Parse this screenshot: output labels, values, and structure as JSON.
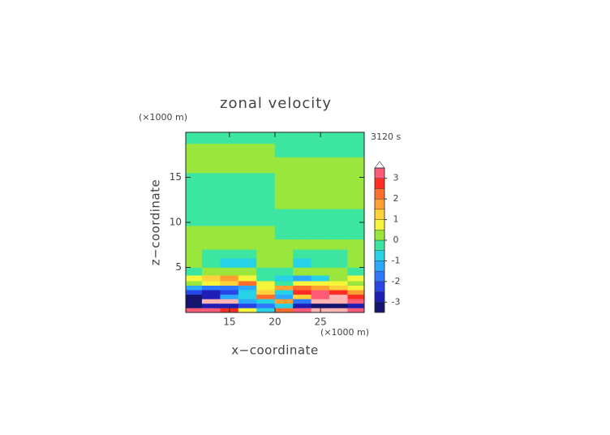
{
  "chart_data": {
    "type": "contour",
    "title": "zonal velocity",
    "annotation": "3120 s",
    "x_label": "x−coordinate",
    "y_label": "z−coordinate",
    "x_unit": "(×1000 m)",
    "y_unit": "(×1000 m)",
    "xlim": [
      10.2,
      29.8
    ],
    "ylim": [
      0,
      20
    ],
    "xticks": [
      15,
      20,
      25
    ],
    "yticks": [
      5,
      10,
      15
    ],
    "x": [
      11,
      13,
      15,
      17,
      19,
      21,
      23,
      25,
      27,
      29
    ],
    "y": [
      0.25,
      0.75,
      1.25,
      1.75,
      2.25,
      2.75,
      3.25,
      3.75,
      4.5,
      5.5,
      6.5,
      7.5,
      8.75,
      10.5,
      12.5,
      14.5,
      16.5,
      18,
      19.5
    ],
    "values": [
      [
        3.2,
        3.0,
        2.8,
        0.8,
        -1.0,
        2.0,
        3.3,
        3.5,
        3.6,
        3.4
      ],
      [
        -3.4,
        -3.0,
        -2.6,
        -2.2,
        -1.8,
        -0.6,
        -2.8,
        -3.2,
        -3.4,
        -3.0
      ],
      [
        -3.4,
        3.6,
        3.7,
        -1.5,
        -0.8,
        1.5,
        -2.0,
        3.8,
        3.8,
        3.2
      ],
      [
        -3.2,
        -2.8,
        -1.5,
        -1.0,
        2.0,
        -1.4,
        1.0,
        3.3,
        3.6,
        2.8
      ],
      [
        -2.2,
        -2.6,
        -2.2,
        -0.8,
        1.2,
        -0.6,
        2.6,
        3.0,
        2.6,
        1.8
      ],
      [
        -1.2,
        -1.6,
        -1.8,
        -1.2,
        0.6,
        1.8,
        2.3,
        1.8,
        1.2,
        0.8
      ],
      [
        0.3,
        0.8,
        1.4,
        2.2,
        0.5,
        -0.3,
        0.6,
        0.8,
        0.6,
        0.4
      ],
      [
        0.8,
        1.2,
        1.6,
        0.8,
        -0.3,
        -0.8,
        -1.2,
        -0.8,
        0.2,
        0.6
      ],
      [
        -0.3,
        0.2,
        0.3,
        0.2,
        -0.3,
        -0.3,
        0.2,
        0.3,
        0.2,
        -0.3
      ],
      [
        0.3,
        -0.3,
        -0.6,
        -0.7,
        0.1,
        0.1,
        -0.7,
        -0.5,
        -0.2,
        0.3
      ],
      [
        0.2,
        -0.2,
        -0.3,
        -0.2,
        0.2,
        0.2,
        -0.2,
        -0.3,
        -0.3,
        0.2
      ],
      [
        0.2,
        0.2,
        0.2,
        0.2,
        0.2,
        0.2,
        0.2,
        0.2,
        0.2,
        0.2
      ],
      [
        0.2,
        0.2,
        0.2,
        0.2,
        0.2,
        -0.2,
        -0.2,
        -0.2,
        -0.2,
        -0.2
      ],
      [
        -0.2,
        -0.2,
        -0.2,
        -0.2,
        -0.2,
        -0.1,
        -0.1,
        -0.1,
        -0.1,
        -0.1
      ],
      [
        -0.2,
        -0.2,
        -0.2,
        -0.2,
        -0.2,
        0.2,
        0.2,
        0.2,
        0.2,
        0.2
      ],
      [
        -0.2,
        -0.2,
        -0.2,
        -0.2,
        -0.2,
        0.2,
        0.2,
        0.2,
        0.2,
        0.2
      ],
      [
        0.2,
        0.2,
        0.2,
        0.2,
        0.2,
        0.2,
        0.2,
        0.2,
        0.2,
        0.2
      ],
      [
        0.2,
        0.2,
        0.2,
        0.2,
        0.2,
        -0.2,
        -0.2,
        -0.2,
        -0.2,
        -0.2
      ],
      [
        -0.2,
        -0.2,
        -0.2,
        -0.2,
        -0.2,
        -0.2,
        -0.2,
        -0.2,
        -0.2,
        -0.2
      ]
    ],
    "levels": [
      -3.5,
      -3,
      -2.5,
      -2,
      -1.5,
      -1,
      -0.5,
      0,
      0.5,
      1,
      1.5,
      2,
      2.5,
      3,
      3.5
    ],
    "colors": [
      "#14146e",
      "#1e1eb4",
      "#2846e6",
      "#2d78ff",
      "#2da8ff",
      "#28d2e6",
      "#3ce6a0",
      "#9be63c",
      "#f5f53c",
      "#ffd23c",
      "#ffa032",
      "#ff6e2d",
      "#ff2d23",
      "#ff5a78",
      "#ffb4b4",
      "#fafafa"
    ],
    "colorbar_ticks": [
      -3,
      -2,
      -1,
      0,
      1,
      2,
      3
    ]
  }
}
